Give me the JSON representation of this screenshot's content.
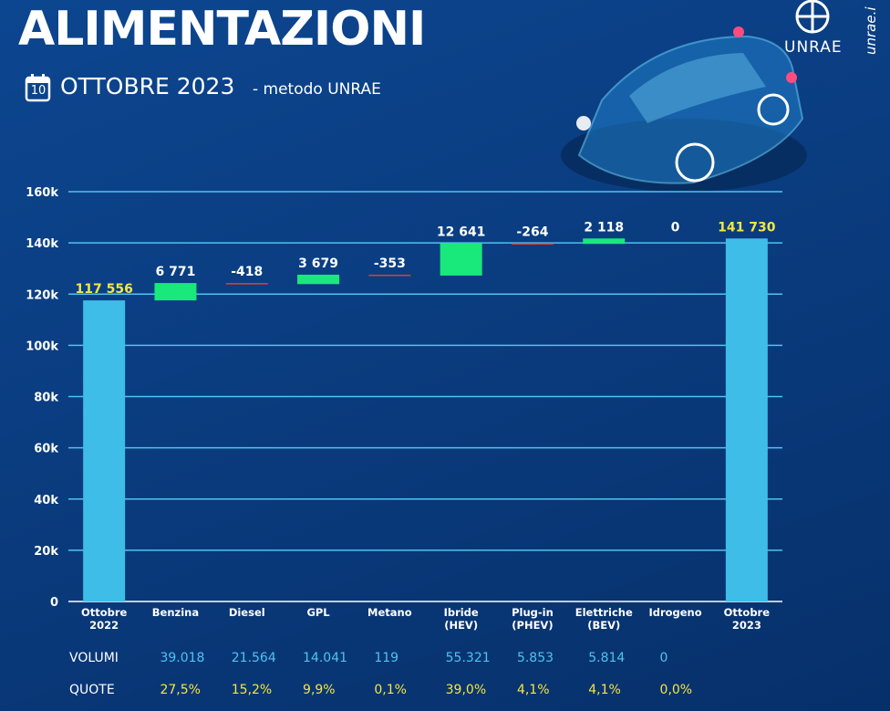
{
  "header": {
    "title": "ALIMENTAZIONI",
    "calendar_day": "10",
    "subtitle": "OTTOBRE 2023",
    "method": "- metodo UNRAE",
    "logo": "UNRAE",
    "site": "unrae.i"
  },
  "chart_data": {
    "type": "waterfall",
    "categories": [
      "Ottobre 2022",
      "Benzina",
      "Diesel",
      "GPL",
      "Metano",
      "Ibride (HEV)",
      "Plug-in (PHEV)",
      "Elettriche (BEV)",
      "Idrogeno",
      "Ottobre 2023"
    ],
    "values": [
      117556,
      6771,
      -418,
      3679,
      -353,
      12641,
      -264,
      2118,
      0,
      141730
    ],
    "value_labels": [
      "117 556",
      "6 771",
      "-418",
      "3 679",
      "-353",
      "12 641",
      "-264",
      "2 118",
      "0",
      "141 730"
    ],
    "colors": {
      "total": "#3dbde8",
      "increase": "#19e87a",
      "decrease": "#e0402e"
    },
    "ylim": [
      0,
      160000
    ],
    "yticks": [
      0,
      {
        "value": 20000,
        "label": "20k"
      },
      {
        "value": 40000,
        "label": "40k"
      },
      {
        "value": 60000,
        "label": "60k"
      },
      {
        "value": 80000,
        "label": "80k"
      },
      {
        "value": 100000,
        "label": "100k"
      },
      {
        "value": 120000,
        "label": "120k"
      },
      {
        "value": 140000,
        "label": "140k"
      },
      {
        "value": 160000,
        "label": "160k"
      }
    ],
    "grid": true
  },
  "table": {
    "rows": [
      {
        "label": "VOLUMI",
        "cells": [
          "39.018",
          "21.564",
          "14.041",
          "119",
          "55.321",
          "5.853",
          "5.814",
          "0"
        ]
      },
      {
        "label": "QUOTE",
        "cells": [
          "27,5%",
          "15,2%",
          "9,9%",
          "0,1%",
          "39,0%",
          "4,1%",
          "4,1%",
          "0,0%"
        ]
      }
    ]
  }
}
